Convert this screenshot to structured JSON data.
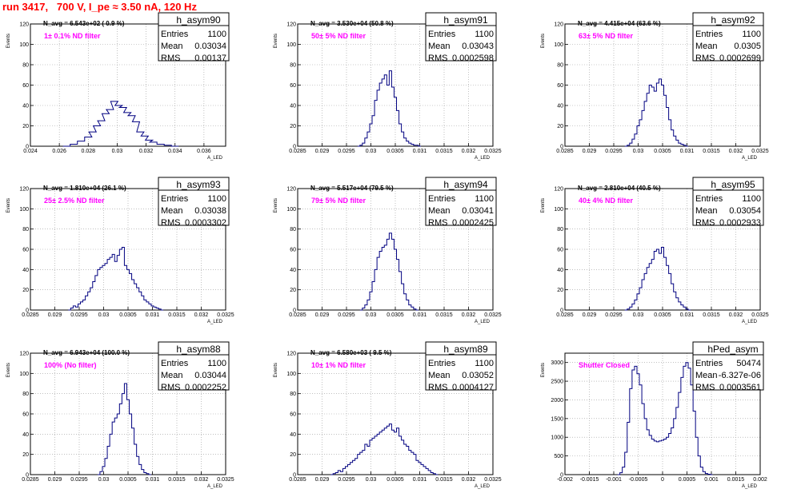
{
  "run_title": "run 3417,   700 V, I_pe ≈ 3.50 nA, 120 Hz",
  "colors": {
    "line": "#000080",
    "label": "#ff00ff",
    "title": "#ff0000"
  },
  "chart_data": [
    {
      "type": "line",
      "histogram": true,
      "name": "h_asym90",
      "xlabel": "A_LED",
      "ylabel": "Events",
      "xlim": [
        0.024,
        0.0375
      ],
      "ylim": [
        0,
        120
      ],
      "xticks": [
        0.024,
        0.026,
        0.028,
        0.03,
        0.032,
        0.034,
        0.036
      ],
      "xtick_labels": [
        "0.024",
        "0.026",
        "0.028",
        "0.03",
        "0.032",
        "0.034",
        "0.036"
      ],
      "yticks": [
        0,
        20,
        40,
        60,
        80,
        100,
        120
      ],
      "navg": "N_avg = 6.543e+02 ( 0.9 %)",
      "filter": "1± 0.1% ND filter",
      "stats": {
        "Entries": "1100",
        "Mean": "0.03034",
        "RMS": "0.00137"
      },
      "x": [
        0.0265,
        0.027,
        0.0275,
        0.028,
        0.0283,
        0.0286,
        0.0289,
        0.0292,
        0.0295,
        0.0298,
        0.0301,
        0.0304,
        0.0307,
        0.031,
        0.0313,
        0.0316,
        0.0319,
        0.0322,
        0.0325,
        0.033,
        0.0335,
        0.034
      ],
      "values": [
        0,
        2,
        5,
        9,
        14,
        20,
        25,
        32,
        36,
        44,
        40,
        38,
        33,
        30,
        24,
        14,
        10,
        6,
        4,
        2,
        1,
        0
      ]
    },
    {
      "type": "line",
      "histogram": true,
      "name": "h_asym91",
      "xlabel": "A_LED",
      "ylabel": "Events",
      "xlim": [
        0.0285,
        0.0325
      ],
      "ylim": [
        0,
        120
      ],
      "xticks": [
        0.0285,
        0.029,
        0.0295,
        0.03,
        0.0305,
        0.031,
        0.0315,
        0.032,
        0.0325
      ],
      "xtick_labels": [
        "0.0285",
        "0.029",
        "0.0295",
        "0.03",
        "0.0305",
        "0.031",
        "0.0315",
        "0.032",
        "0.0325"
      ],
      "yticks": [
        0,
        20,
        40,
        60,
        80,
        100,
        120
      ],
      "navg": "N_avg = 3.530e+04 (50.8 %)",
      "filter": "50± 5% ND filter",
      "stats": {
        "Entries": "1100",
        "Mean": "0.03043",
        "RMS": "0.0002598"
      },
      "x": [
        0.02975,
        0.0298,
        0.02985,
        0.0299,
        0.02995,
        0.03,
        0.03005,
        0.0301,
        0.03015,
        0.0302,
        0.03025,
        0.0303,
        0.03035,
        0.0304,
        0.03045,
        0.0305,
        0.03055,
        0.0306,
        0.03065,
        0.0307,
        0.03075,
        0.0308,
        0.03085,
        0.0309,
        0.03095,
        0.031
      ],
      "values": [
        0,
        1,
        3,
        8,
        14,
        22,
        30,
        45,
        55,
        62,
        66,
        70,
        60,
        74,
        58,
        48,
        35,
        22,
        14,
        8,
        5,
        3,
        2,
        1,
        1,
        0
      ]
    },
    {
      "type": "line",
      "histogram": true,
      "name": "h_asym92",
      "xlabel": "A_LED",
      "ylabel": "Events",
      "xlim": [
        0.0285,
        0.0325
      ],
      "ylim": [
        0,
        120
      ],
      "xticks": [
        0.0285,
        0.029,
        0.0295,
        0.03,
        0.0305,
        0.031,
        0.0315,
        0.032,
        0.0325
      ],
      "xtick_labels": [
        "0.0285",
        "0.029",
        "0.0295",
        "0.03",
        "0.0305",
        "0.031",
        "0.0315",
        "0.032",
        "0.0325"
      ],
      "yticks": [
        0,
        20,
        40,
        60,
        80,
        100,
        120
      ],
      "navg": "N_avg = 4.415e+04 (63.6 %)",
      "filter": "63± 5% ND filter",
      "stats": {
        "Entries": "1100",
        "Mean": "0.0305",
        "RMS": "0.0002699"
      },
      "x": [
        0.02975,
        0.0298,
        0.02985,
        0.0299,
        0.02995,
        0.03,
        0.03005,
        0.0301,
        0.03015,
        0.0302,
        0.03025,
        0.0303,
        0.03035,
        0.0304,
        0.03045,
        0.0305,
        0.03055,
        0.0306,
        0.03065,
        0.0307,
        0.03075,
        0.0308,
        0.03085,
        0.0309,
        0.03095,
        0.031
      ],
      "values": [
        0,
        1,
        3,
        7,
        12,
        20,
        26,
        35,
        44,
        52,
        60,
        58,
        54,
        62,
        66,
        60,
        50,
        38,
        26,
        16,
        10,
        6,
        3,
        2,
        1,
        0
      ]
    },
    {
      "type": "line",
      "histogram": true,
      "name": "h_asym93",
      "xlabel": "A_LED",
      "ylabel": "Events",
      "xlim": [
        0.0285,
        0.0325
      ],
      "ylim": [
        0,
        120
      ],
      "xticks": [
        0.0285,
        0.029,
        0.0295,
        0.03,
        0.0305,
        0.031,
        0.0315,
        0.032,
        0.0325
      ],
      "xtick_labels": [
        "0.0285",
        "0.029",
        "0.0295",
        "0.03",
        "0.0305",
        "0.031",
        "0.0315",
        "0.032",
        "0.0325"
      ],
      "yticks": [
        0,
        20,
        40,
        60,
        80,
        100,
        120
      ],
      "navg": "N_avg = 1.810e+04 (26.1 %)",
      "filter": "25± 2.5% ND filter",
      "stats": {
        "Entries": "1100",
        "Mean": "0.03038",
        "RMS": "0.0003302"
      },
      "x": [
        0.0293,
        0.02935,
        0.0294,
        0.02945,
        0.0295,
        0.02955,
        0.0296,
        0.02965,
        0.0297,
        0.02975,
        0.0298,
        0.02985,
        0.0299,
        0.02995,
        0.03,
        0.03005,
        0.0301,
        0.03015,
        0.0302,
        0.03025,
        0.0303,
        0.03035,
        0.0304,
        0.03045,
        0.0305,
        0.03055,
        0.0306,
        0.03065,
        0.0307,
        0.03075,
        0.0308,
        0.03085,
        0.0309,
        0.03095,
        0.031,
        0.03105,
        0.0311,
        0.03115,
        0.0312
      ],
      "values": [
        0,
        2,
        4,
        3,
        6,
        8,
        10,
        14,
        18,
        22,
        28,
        34,
        40,
        42,
        44,
        46,
        50,
        52,
        55,
        48,
        54,
        60,
        62,
        44,
        40,
        36,
        30,
        26,
        22,
        18,
        14,
        10,
        8,
        6,
        4,
        3,
        2,
        1,
        0
      ]
    },
    {
      "type": "line",
      "histogram": true,
      "name": "h_asym94",
      "xlabel": "A_LED",
      "ylabel": "Events",
      "xlim": [
        0.0285,
        0.0325
      ],
      "ylim": [
        0,
        120
      ],
      "xticks": [
        0.0285,
        0.029,
        0.0295,
        0.03,
        0.0305,
        0.031,
        0.0315,
        0.032,
        0.0325
      ],
      "xtick_labels": [
        "0.0285",
        "0.029",
        "0.0295",
        "0.03",
        "0.0305",
        "0.031",
        "0.0315",
        "0.032",
        "0.0325"
      ],
      "yticks": [
        0,
        20,
        40,
        60,
        80,
        100,
        120
      ],
      "navg": "N_avg = 5.517e+04 (79.5 %)",
      "filter": "79± 5% ND filter",
      "stats": {
        "Entries": "1100",
        "Mean": "0.03041",
        "RMS": "0.0002425"
      },
      "x": [
        0.0298,
        0.02985,
        0.0299,
        0.02995,
        0.03,
        0.03005,
        0.0301,
        0.03015,
        0.0302,
        0.03025,
        0.0303,
        0.03035,
        0.0304,
        0.03045,
        0.0305,
        0.03055,
        0.0306,
        0.03065,
        0.0307,
        0.03075,
        0.0308,
        0.03085,
        0.0309,
        0.03095
      ],
      "values": [
        0,
        2,
        5,
        10,
        18,
        28,
        40,
        52,
        58,
        62,
        64,
        70,
        76,
        70,
        60,
        50,
        38,
        26,
        16,
        10,
        5,
        3,
        1,
        0
      ]
    },
    {
      "type": "line",
      "histogram": true,
      "name": "h_asym95",
      "xlabel": "A_LED",
      "ylabel": "Events",
      "xlim": [
        0.0285,
        0.0325
      ],
      "ylim": [
        0,
        120
      ],
      "xticks": [
        0.0285,
        0.029,
        0.0295,
        0.03,
        0.0305,
        0.031,
        0.0315,
        0.032,
        0.0325
      ],
      "xtick_labels": [
        "0.0285",
        "0.029",
        "0.0295",
        "0.03",
        "0.0305",
        "0.031",
        "0.0315",
        "0.032",
        "0.0325"
      ],
      "yticks": [
        0,
        20,
        40,
        60,
        80,
        100,
        120
      ],
      "navg": "N_avg = 2.810e+04 (40.5 %)",
      "filter": "40± 4% ND filter",
      "stats": {
        "Entries": "1100",
        "Mean": "0.03054",
        "RMS": "0.0002933"
      },
      "x": [
        0.02975,
        0.0298,
        0.02985,
        0.0299,
        0.02995,
        0.03,
        0.03005,
        0.0301,
        0.03015,
        0.0302,
        0.03025,
        0.0303,
        0.03035,
        0.0304,
        0.03045,
        0.0305,
        0.03055,
        0.0306,
        0.03065,
        0.0307,
        0.03075,
        0.0308,
        0.03085,
        0.0309,
        0.03095,
        0.031,
        0.03105
      ],
      "values": [
        0,
        1,
        3,
        6,
        10,
        16,
        22,
        30,
        36,
        42,
        46,
        50,
        58,
        60,
        56,
        62,
        52,
        44,
        36,
        26,
        18,
        12,
        8,
        5,
        3,
        1,
        0
      ]
    },
    {
      "type": "line",
      "histogram": true,
      "name": "h_asym88",
      "xlabel": "A_LED",
      "ylabel": "Events",
      "xlim": [
        0.0285,
        0.0325
      ],
      "ylim": [
        0,
        120
      ],
      "xticks": [
        0.0285,
        0.029,
        0.0295,
        0.03,
        0.0305,
        0.031,
        0.0315,
        0.032,
        0.0325
      ],
      "xtick_labels": [
        "0.0285",
        "0.029",
        "0.0295",
        "0.03",
        "0.0305",
        "0.031",
        "0.0315",
        "0.032",
        "0.0325"
      ],
      "yticks": [
        0,
        20,
        40,
        60,
        80,
        100,
        120
      ],
      "navg": "N_avg = 6.943e+04 (100.0 %)",
      "filter": "100% (No filter)",
      "stats": {
        "Entries": "1100",
        "Mean": "0.03044",
        "RMS": "0.0002252"
      },
      "x": [
        0.0299,
        0.02995,
        0.03,
        0.03005,
        0.0301,
        0.03015,
        0.0302,
        0.03025,
        0.0303,
        0.03035,
        0.0304,
        0.03045,
        0.0305,
        0.03055,
        0.0306,
        0.03065,
        0.0307,
        0.03075,
        0.0308,
        0.03085,
        0.0309,
        0.03095
      ],
      "values": [
        0,
        3,
        8,
        16,
        28,
        40,
        52,
        56,
        60,
        70,
        80,
        90,
        74,
        60,
        46,
        30,
        18,
        10,
        5,
        2,
        1,
        0
      ]
    },
    {
      "type": "line",
      "histogram": true,
      "name": "h_asym89",
      "xlabel": "A_LED",
      "ylabel": "Events",
      "xlim": [
        0.0285,
        0.0325
      ],
      "ylim": [
        0,
        120
      ],
      "xticks": [
        0.0285,
        0.029,
        0.0295,
        0.03,
        0.0305,
        0.031,
        0.0315,
        0.032,
        0.0325
      ],
      "xtick_labels": [
        "0.0285",
        "0.029",
        "0.0295",
        "0.03",
        "0.0305",
        "0.031",
        "0.0315",
        "0.032",
        "0.0325"
      ],
      "yticks": [
        0,
        20,
        40,
        60,
        80,
        100,
        120
      ],
      "navg": "N_avg = 6.580e+03 ( 9.5 %)",
      "filter": "10± 1% ND filter",
      "stats": {
        "Entries": "1100",
        "Mean": "0.03052",
        "RMS": "0.0004127"
      },
      "x": [
        0.0292,
        0.02925,
        0.0293,
        0.02935,
        0.0294,
        0.02945,
        0.0295,
        0.02955,
        0.0296,
        0.02965,
        0.0297,
        0.02975,
        0.0298,
        0.02985,
        0.0299,
        0.02995,
        0.03,
        0.03005,
        0.0301,
        0.03015,
        0.0302,
        0.03025,
        0.0303,
        0.03035,
        0.0304,
        0.03045,
        0.0305,
        0.03055,
        0.0306,
        0.03065,
        0.0307,
        0.03075,
        0.0308,
        0.03085,
        0.0309,
        0.03095,
        0.031,
        0.03105,
        0.0311,
        0.03115,
        0.0312,
        0.03125,
        0.0313,
        0.03135
      ],
      "values": [
        0,
        1,
        2,
        4,
        3,
        6,
        8,
        10,
        12,
        14,
        16,
        20,
        22,
        24,
        30,
        28,
        34,
        36,
        38,
        40,
        42,
        44,
        46,
        48,
        50,
        44,
        42,
        46,
        38,
        34,
        30,
        28,
        24,
        22,
        20,
        14,
        12,
        10,
        8,
        6,
        4,
        2,
        1,
        0
      ]
    },
    {
      "type": "line",
      "histogram": true,
      "name": "hPed_asym",
      "xlabel": "A_LED",
      "ylabel": "Events",
      "xlim": [
        -0.002,
        0.002
      ],
      "ylim": [
        0,
        3250
      ],
      "xticks": [
        -0.002,
        -0.0015,
        -0.001,
        -0.0005,
        0,
        0.0005,
        0.001,
        0.0015,
        0.002
      ],
      "xtick_labels": [
        "-0.002",
        "-0.0015",
        "-0.001",
        "-0.0005",
        "0",
        "0.0005",
        "0.001",
        "0.0015",
        "0.002"
      ],
      "yticks": [
        0,
        500,
        1000,
        1500,
        2000,
        2500,
        3000
      ],
      "navg": "",
      "filter": "Shutter Closed",
      "stats": {
        "Entries": "50474",
        "Mean": "-6.327e-06",
        "RMS": "0.0003561"
      },
      "x": [
        -0.0009,
        -0.00085,
        -0.0008,
        -0.00075,
        -0.0007,
        -0.00065,
        -0.0006,
        -0.00055,
        -0.0005,
        -0.00045,
        -0.0004,
        -0.00035,
        -0.0003,
        -0.00025,
        -0.0002,
        -0.00015,
        -0.0001,
        -5e-05,
        0,
        5e-05,
        0.0001,
        0.00015,
        0.0002,
        0.00025,
        0.0003,
        0.00035,
        0.0004,
        0.00045,
        0.0005,
        0.00055,
        0.0006,
        0.00065,
        0.0007,
        0.00075,
        0.0008,
        0.00085,
        0.0009,
        0.00095,
        0.001
      ],
      "values": [
        0,
        50,
        200,
        600,
        1400,
        2300,
        2800,
        2900,
        2700,
        2400,
        1900,
        1500,
        1200,
        1050,
        950,
        900,
        880,
        900,
        920,
        950,
        1000,
        1100,
        1250,
        1500,
        1800,
        2200,
        2600,
        2900,
        3000,
        2850,
        2400,
        1700,
        1000,
        500,
        200,
        80,
        30,
        10,
        0
      ]
    }
  ]
}
